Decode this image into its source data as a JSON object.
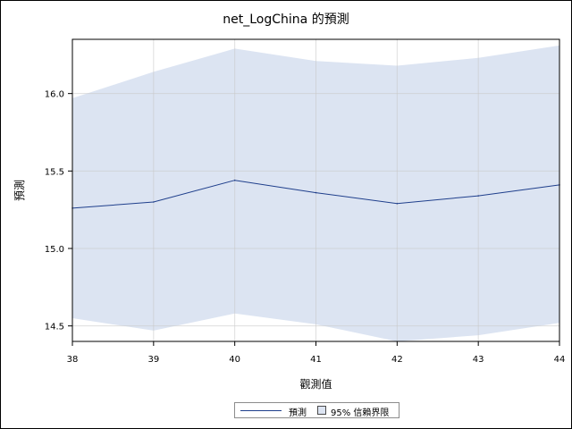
{
  "chart_data": {
    "type": "line",
    "title": "net_LogChina 的預測",
    "xlabel": "觀測值",
    "ylabel": "預測",
    "x": [
      38,
      39,
      40,
      41,
      42,
      43,
      44
    ],
    "xlim": [
      38,
      44
    ],
    "ylim": [
      14.4,
      16.35
    ],
    "y_ticks": [
      14.5,
      15.0,
      15.5,
      16.0
    ],
    "y_tick_labels": [
      "14.5",
      "15.0",
      "15.5",
      "16.0"
    ],
    "grid": true,
    "legend_position": "bottom-center",
    "series": [
      {
        "name": "預測",
        "type": "line",
        "color": "#1f3f8c",
        "values": [
          15.26,
          15.3,
          15.44,
          15.36,
          15.29,
          15.34,
          15.41
        ]
      },
      {
        "name": "95% 信賴界限",
        "type": "band",
        "color": "#dce4f2",
        "lower": [
          14.55,
          14.47,
          14.58,
          14.51,
          14.4,
          14.44,
          14.52
        ],
        "upper": [
          15.97,
          16.14,
          16.29,
          16.21,
          16.18,
          16.23,
          16.31
        ]
      }
    ]
  },
  "legend": {
    "forecast_label": "預測",
    "band_label": "95% 信賴界限"
  }
}
